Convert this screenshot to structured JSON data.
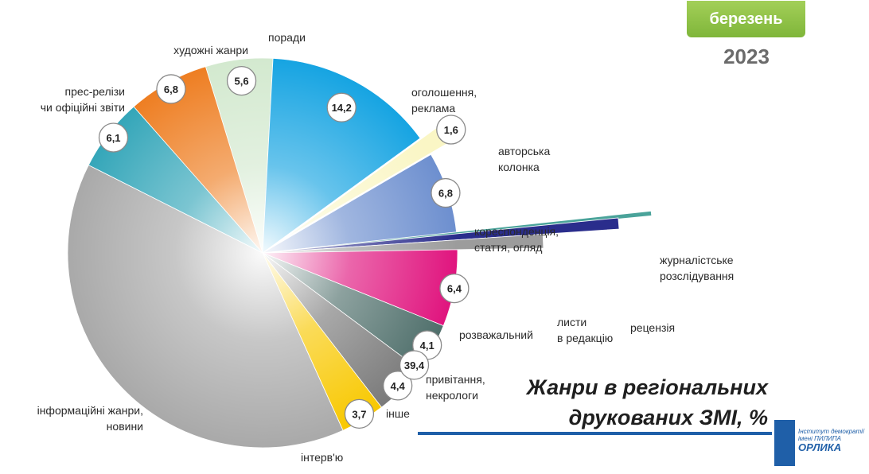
{
  "header": {
    "month": "березень",
    "year": "2023"
  },
  "title_lines": [
    "Жанри в регіональних",
    "друкованих ЗМІ, %"
  ],
  "logo": {
    "line1": "Інститут демократії",
    "line2": "імені ПИЛИПА",
    "line3": "ОРЛИКА"
  },
  "chart_data": {
    "type": "pie",
    "title": "Жанри в регіональних друкованих ЗМІ, %",
    "start_angle_deg": -17,
    "slices": [
      {
        "name": "поради",
        "label_lines": [
          "поради"
        ],
        "value": 5.6,
        "label": "5,6",
        "color": "#d3e9cf",
        "explode": 0
      },
      {
        "name": "оголошення, реклама",
        "label_lines": [
          "оголошення,",
          "реклама"
        ],
        "value": 14.2,
        "label": "14,2",
        "color": "#16a4e2",
        "explode": 0
      },
      {
        "name": "авторська колонка",
        "label_lines": [
          "авторська",
          "колонка"
        ],
        "value": 1.6,
        "label": "1,6",
        "color": "#faf6c5",
        "explode": 32
      },
      {
        "name": "кореспонденція, стаття, огляд",
        "label_lines": [
          "кореспонденція,",
          "стаття, огляд"
        ],
        "value": 6.8,
        "label": "6,8",
        "color": "#6d8fcf",
        "explode": 0
      },
      {
        "name": "журналістське розслідування",
        "label_lines": [
          "журналістське",
          "розслідування"
        ],
        "value": 0.1,
        "label": "0,1",
        "color": "#4aa39a",
        "explode": 0
      },
      {
        "name": "рецензія",
        "label_lines": [
          "рецензія"
        ],
        "value": 0.5,
        "label": "0,5",
        "color": "#2a2d8c",
        "explode": 0
      },
      {
        "name": "листи в редакцію",
        "label_lines": [
          "листи",
          "в редакцію"
        ],
        "value": 0.8,
        "label": "0,8",
        "color": "#9c9c9c",
        "explode": 0
      },
      {
        "name": "розважальний",
        "label_lines": [
          "розважальний"
        ],
        "value": 6.4,
        "label": "6,4",
        "color": "#e0147e",
        "explode": 0
      },
      {
        "name": "привітання, некрологи",
        "label_lines": [
          "привітання,",
          "некрологи"
        ],
        "value": 4.1,
        "label": "4,1",
        "color": "#4f6f6b",
        "explode": 0
      },
      {
        "name": "інше",
        "label_lines": [
          "інше"
        ],
        "value": 4.4,
        "label": "4,4",
        "color": "#7a7a7a",
        "explode": 0
      },
      {
        "name": "інтерв'ю",
        "label_lines": [
          "інтерв'ю"
        ],
        "value": 3.7,
        "label": "3,7",
        "color": "#f8c800",
        "explode": 0
      },
      {
        "name": "інформаційні жанри, новини",
        "label_lines": [
          "інформаційні жанри,",
          "новини"
        ],
        "value": 39.4,
        "label": "39,4",
        "color": "#a9a9a9",
        "explode": 0
      },
      {
        "name": "прес-релізи чи офіційні звіти",
        "label_lines": [
          "прес-релізи",
          "чи офіційні звіти"
        ],
        "value": 6.1,
        "label": "6,1",
        "color": "#34a6b9",
        "explode": 0
      },
      {
        "name": "художні жанри",
        "label_lines": [
          "художні жанри"
        ],
        "value": 6.8,
        "label": "6,8",
        "color": "#ee7e22",
        "explode": 0
      }
    ]
  }
}
